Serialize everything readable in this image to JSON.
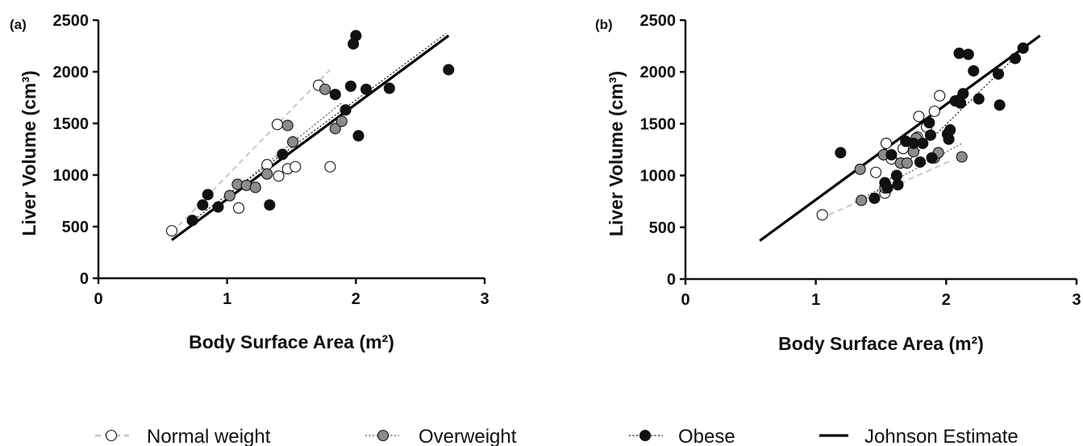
{
  "legend": [
    {
      "key": "normal",
      "label": "Normal weight",
      "fill": "#ffffff",
      "line_color": "#c8c8c8",
      "line_style": "dashed"
    },
    {
      "key": "overweight",
      "label": "Overweight",
      "fill": "#8c8c8c",
      "line_color": "#555555",
      "line_style": "dotted"
    },
    {
      "key": "obese",
      "label": "Obese",
      "fill": "#111111",
      "line_color": "#111111",
      "line_style": "dotted"
    },
    {
      "key": "johnson",
      "label": "Johnson Estimate",
      "fill": "none",
      "line_color": "#000000",
      "line_style": "solid"
    }
  ],
  "chart_data": [
    {
      "type": "scatter",
      "panel_label": "(a)",
      "xlabel": "Body Surface Area (m²)",
      "ylabel": "Liver Volume (cm³)",
      "xlim": [
        0,
        3
      ],
      "ylim": [
        0,
        2500
      ],
      "xticks": [
        "0",
        "1",
        "2",
        "3"
      ],
      "yticks": [
        "0",
        "500",
        "1000",
        "1500",
        "2000",
        "2500"
      ],
      "series": [
        {
          "name": "Normal weight",
          "key": "normal",
          "points": [
            [
              0.57,
              460
            ],
            [
              1.09,
              680
            ],
            [
              1.31,
              1100
            ],
            [
              1.39,
              1490
            ],
            [
              1.4,
              990
            ],
            [
              1.47,
              1060
            ],
            [
              1.53,
              1080
            ],
            [
              1.71,
              1870
            ],
            [
              1.8,
              1080
            ]
          ],
          "fit": [
            [
              0.57,
              440
            ],
            [
              1.8,
              2020
            ]
          ]
        },
        {
          "name": "Overweight",
          "key": "overweight",
          "points": [
            [
              1.02,
              800
            ],
            [
              1.08,
              910
            ],
            [
              1.15,
              900
            ],
            [
              1.22,
              880
            ],
            [
              1.31,
              1010
            ],
            [
              1.47,
              1480
            ],
            [
              1.51,
              1320
            ],
            [
              1.76,
              1830
            ],
            [
              1.84,
              1450
            ],
            [
              1.89,
              1520
            ]
          ],
          "fit": [
            [
              1.0,
              800
            ],
            [
              1.89,
              1700
            ]
          ]
        },
        {
          "name": "Obese",
          "key": "obese",
          "points": [
            [
              0.73,
              560
            ],
            [
              0.81,
              710
            ],
            [
              0.85,
              810
            ],
            [
              0.93,
              690
            ],
            [
              1.33,
              710
            ],
            [
              1.43,
              1200
            ],
            [
              1.84,
              1780
            ],
            [
              1.92,
              1630
            ],
            [
              1.96,
              1860
            ],
            [
              1.98,
              2270
            ],
            [
              2.0,
              2350
            ],
            [
              2.02,
              1380
            ],
            [
              2.08,
              1830
            ],
            [
              2.26,
              1840
            ],
            [
              2.72,
              2020
            ]
          ],
          "fit": [
            [
              0.7,
              530
            ],
            [
              2.7,
              2370
            ]
          ]
        },
        {
          "name": "Johnson Estimate",
          "key": "johnson",
          "line": [
            [
              0.57,
              370
            ],
            [
              2.72,
              2350
            ]
          ]
        }
      ]
    },
    {
      "type": "scatter",
      "panel_label": "(b)",
      "xlabel": "Body Surface Area (m²)",
      "ylabel": "Liver Volume (cm³)",
      "xlim": [
        0,
        3
      ],
      "ylim": [
        0,
        2500
      ],
      "xticks": [
        "0",
        "1",
        "2",
        "3"
      ],
      "yticks": [
        "0",
        "500",
        "1000",
        "1500",
        "2000",
        "2500"
      ],
      "series": [
        {
          "name": "Normal weight",
          "key": "normal",
          "points": [
            [
              1.05,
              620
            ],
            [
              1.46,
              1030
            ],
            [
              1.53,
              830
            ],
            [
              1.54,
              1310
            ],
            [
              1.58,
              1160
            ],
            [
              1.67,
              1260
            ],
            [
              1.78,
              1370
            ],
            [
              1.79,
              1570
            ],
            [
              1.85,
              1470
            ],
            [
              1.91,
              1620
            ],
            [
              1.95,
              1770
            ]
          ],
          "fit": [
            [
              1.1,
              620
            ],
            [
              2.05,
              1150
            ]
          ]
        },
        {
          "name": "Overweight",
          "key": "overweight",
          "points": [
            [
              1.34,
              1060
            ],
            [
              1.35,
              760
            ],
            [
              1.52,
              1200
            ],
            [
              1.53,
              880
            ],
            [
              1.65,
              1120
            ],
            [
              1.7,
              1120
            ],
            [
              1.75,
              1230
            ],
            [
              1.77,
              1360
            ],
            [
              1.91,
              1170
            ],
            [
              1.94,
              1220
            ],
            [
              2.12,
              1180
            ]
          ],
          "fit": [
            [
              1.3,
              740
            ],
            [
              2.12,
              1310
            ]
          ]
        },
        {
          "name": "Obese",
          "key": "obese",
          "points": [
            [
              1.19,
              1220
            ],
            [
              1.45,
              780
            ],
            [
              1.53,
              930
            ],
            [
              1.55,
              880
            ],
            [
              1.58,
              1200
            ],
            [
              1.62,
              1000
            ],
            [
              1.63,
              910
            ],
            [
              1.69,
              1330
            ],
            [
              1.75,
              1310
            ],
            [
              1.8,
              1130
            ],
            [
              1.82,
              1310
            ],
            [
              1.87,
              1510
            ],
            [
              1.88,
              1390
            ],
            [
              1.89,
              1170
            ],
            [
              2.01,
              1400
            ],
            [
              2.02,
              1350
            ],
            [
              2.03,
              1440
            ],
            [
              2.07,
              1720
            ],
            [
              2.1,
              2180
            ],
            [
              2.11,
              1700
            ],
            [
              2.13,
              1790
            ],
            [
              2.17,
              2170
            ],
            [
              2.21,
              2010
            ],
            [
              2.25,
              1740
            ],
            [
              2.4,
              1980
            ],
            [
              2.41,
              1680
            ],
            [
              2.53,
              2130
            ],
            [
              2.59,
              2230
            ]
          ],
          "fit": [
            [
              1.45,
              820
            ],
            [
              2.6,
              2230
            ]
          ]
        },
        {
          "name": "Johnson Estimate",
          "key": "johnson",
          "line": [
            [
              0.57,
              370
            ],
            [
              2.72,
              2350
            ]
          ]
        }
      ]
    }
  ]
}
